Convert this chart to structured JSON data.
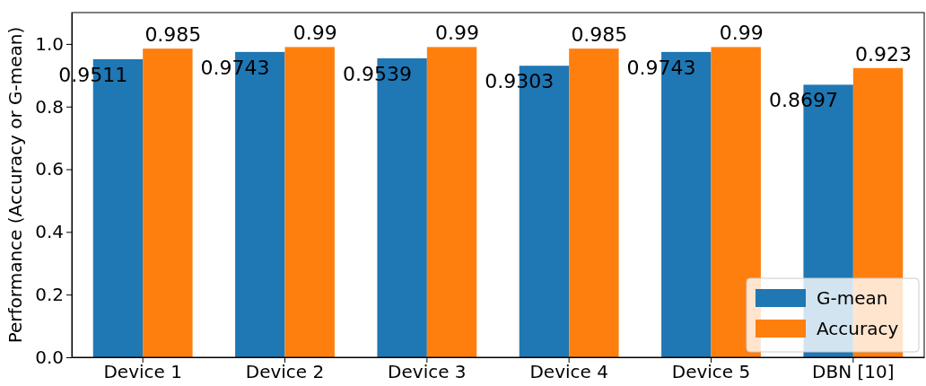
{
  "chart_data": {
    "type": "bar",
    "ylabel": "Performance (Accuracy or G-mean)",
    "categories": [
      "Device 1",
      "Device 2",
      "Device 3",
      "Device 4",
      "Device 5",
      "DBN [10]"
    ],
    "series": [
      {
        "name": "G-mean",
        "color": "#1f77b4",
        "values": [
          0.9511,
          0.9743,
          0.9539,
          0.9303,
          0.9743,
          0.8697
        ]
      },
      {
        "name": "Accuracy",
        "color": "#ff7f0e",
        "values": [
          0.985,
          0.99,
          0.99,
          0.985,
          0.99,
          0.923
        ]
      }
    ],
    "ylim": [
      0,
      1.1
    ],
    "yticks": [
      {
        "value": 0,
        "label": "0.0"
      },
      {
        "value": 0.2,
        "label": "0.2"
      },
      {
        "value": 0.4,
        "label": "0.4"
      },
      {
        "value": 0.6,
        "label": "0.6"
      },
      {
        "value": 0.8,
        "label": "0.8"
      },
      {
        "value": 1,
        "label": "1.0"
      }
    ],
    "data_labels": true,
    "legend": "bottom right",
    "grid": false
  }
}
